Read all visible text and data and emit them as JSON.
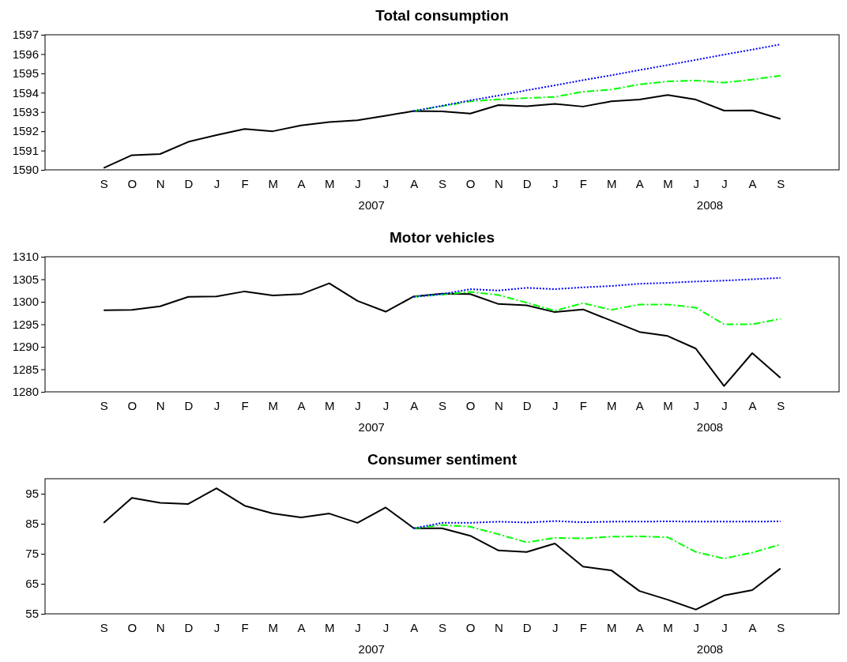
{
  "chart_data": [
    {
      "type": "line",
      "title": "Total consumption",
      "categories": [
        "S",
        "O",
        "N",
        "D",
        "J",
        "F",
        "M",
        "A",
        "M",
        "J",
        "J",
        "A",
        "S",
        "O",
        "N",
        "D",
        "J",
        "F",
        "M",
        "A",
        "M",
        "J",
        "J",
        "A",
        "S"
      ],
      "annotations": [
        "2007",
        "2008"
      ],
      "ylim": [
        1590,
        1597
      ],
      "yticks": [
        1590,
        1591,
        1592,
        1593,
        1594,
        1595,
        1596,
        1597
      ],
      "grid": false,
      "marker": "none",
      "series": [
        {
          "color": "#000000",
          "line_style": "solid",
          "values": [
            1590.1,
            1590.76,
            1590.82,
            1591.45,
            1591.8,
            1592.12,
            1592.0,
            1592.3,
            1592.48,
            1592.57,
            1592.8,
            1593.05,
            1593.03,
            1592.92,
            1593.36,
            1593.3,
            1593.42,
            1593.28,
            1593.55,
            1593.64,
            1593.88,
            1593.64,
            1593.07,
            1593.08,
            1592.64
          ]
        },
        {
          "color": "#00ff00",
          "line_style": "dashed",
          "values": [
            null,
            null,
            null,
            null,
            null,
            null,
            null,
            null,
            null,
            null,
            null,
            1593.05,
            1593.3,
            1593.55,
            1593.65,
            1593.72,
            1593.78,
            1594.05,
            1594.16,
            1594.43,
            1594.58,
            1594.63,
            1594.52,
            1594.68,
            1594.88
          ]
        },
        {
          "color": "#0000ff",
          "line_style": "dotted",
          "values": [
            null,
            null,
            null,
            null,
            null,
            null,
            null,
            null,
            null,
            null,
            null,
            1593.05,
            1593.32,
            1593.6,
            1593.85,
            1594.12,
            1594.38,
            1594.65,
            1594.9,
            1595.17,
            1595.43,
            1595.7,
            1595.97,
            1596.23,
            1596.5
          ]
        }
      ]
    },
    {
      "type": "line",
      "title": "Motor vehicles",
      "categories": [
        "S",
        "O",
        "N",
        "D",
        "J",
        "F",
        "M",
        "A",
        "M",
        "J",
        "J",
        "A",
        "S",
        "O",
        "N",
        "D",
        "J",
        "F",
        "M",
        "A",
        "M",
        "J",
        "J",
        "A",
        "S"
      ],
      "annotations": [
        "2007",
        "2008"
      ],
      "ylim": [
        1280,
        1310
      ],
      "yticks": [
        1280,
        1285,
        1290,
        1295,
        1300,
        1305,
        1310
      ],
      "grid": false,
      "marker": "none",
      "series": [
        {
          "color": "#000000",
          "line_style": "solid",
          "values": [
            1298.1,
            1298.2,
            1299.0,
            1301.1,
            1301.2,
            1302.3,
            1301.4,
            1301.7,
            1304.1,
            1300.2,
            1297.8,
            1301.2,
            1301.8,
            1301.7,
            1299.5,
            1299.2,
            1297.7,
            1298.3,
            1295.8,
            1293.3,
            1292.4,
            1289.6,
            1281.3,
            1288.6,
            1283.1
          ]
        },
        {
          "color": "#00ff00",
          "line_style": "dashed",
          "values": [
            null,
            null,
            null,
            null,
            null,
            null,
            null,
            null,
            null,
            null,
            null,
            1301.1,
            1301.6,
            1302.2,
            1301.5,
            1299.8,
            1298.0,
            1299.7,
            1298.2,
            1299.4,
            1299.4,
            1298.7,
            1295.0,
            1295.0,
            1296.2
          ]
        },
        {
          "color": "#0000ff",
          "line_style": "dotted",
          "values": [
            null,
            null,
            null,
            null,
            null,
            null,
            null,
            null,
            null,
            null,
            null,
            1301.1,
            1301.7,
            1302.8,
            1302.5,
            1303.1,
            1302.8,
            1303.2,
            1303.5,
            1304.0,
            1304.2,
            1304.5,
            1304.7,
            1305.0,
            1305.3
          ]
        }
      ]
    },
    {
      "type": "line",
      "title": "Consumer sentiment",
      "categories": [
        "S",
        "O",
        "N",
        "D",
        "J",
        "F",
        "M",
        "A",
        "M",
        "J",
        "J",
        "A",
        "S",
        "O",
        "N",
        "D",
        "J",
        "F",
        "M",
        "A",
        "M",
        "J",
        "J",
        "A",
        "S"
      ],
      "annotations": [
        "2007",
        "2008"
      ],
      "ylim": [
        55,
        100
      ],
      "yticks": [
        55,
        65,
        75,
        85,
        95
      ],
      "grid": false,
      "marker": "none",
      "series": [
        {
          "color": "#000000",
          "line_style": "solid",
          "values": [
            85.3,
            93.6,
            92.0,
            91.6,
            96.8,
            91.0,
            88.4,
            87.1,
            88.4,
            85.3,
            90.4,
            83.5,
            83.5,
            81.0,
            76.1,
            75.6,
            78.4,
            70.7,
            69.5,
            62.6,
            59.7,
            56.4,
            61.1,
            62.9,
            70.1
          ]
        },
        {
          "color": "#00ff00",
          "line_style": "dashed",
          "values": [
            null,
            null,
            null,
            null,
            null,
            null,
            null,
            null,
            null,
            null,
            null,
            83.5,
            84.6,
            84.0,
            81.5,
            78.8,
            80.3,
            80.1,
            80.7,
            80.8,
            80.5,
            75.6,
            73.4,
            75.4,
            78.1
          ]
        },
        {
          "color": "#0000ff",
          "line_style": "dotted",
          "values": [
            null,
            null,
            null,
            null,
            null,
            null,
            null,
            null,
            null,
            null,
            null,
            83.5,
            85.3,
            85.3,
            85.7,
            85.4,
            85.9,
            85.5,
            85.7,
            85.7,
            85.8,
            85.7,
            85.7,
            85.7,
            85.8
          ]
        }
      ]
    }
  ]
}
